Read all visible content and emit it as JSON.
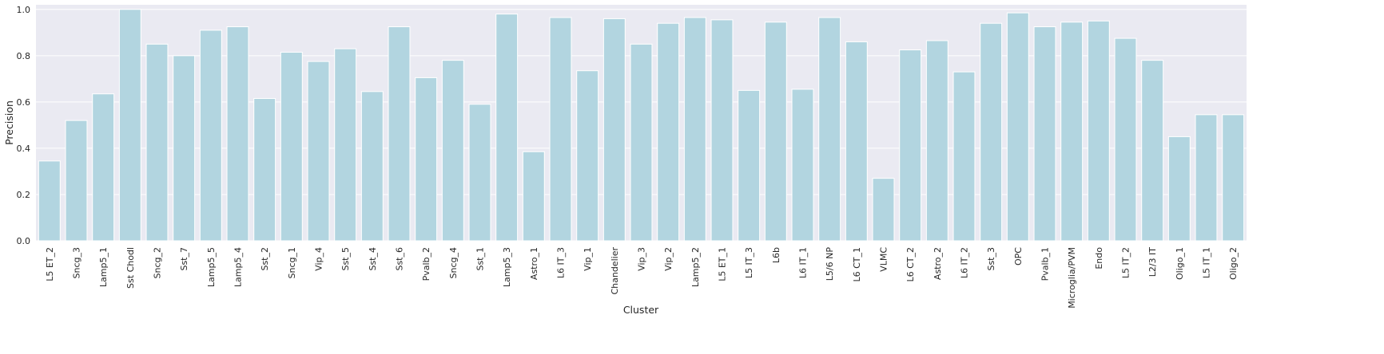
{
  "chart_data": {
    "type": "bar",
    "title": "",
    "xlabel": "Cluster",
    "ylabel": "Precision",
    "ylim": [
      0,
      1.02
    ],
    "yticks": [
      "0.0",
      "0.2",
      "0.4",
      "0.6",
      "0.8",
      "1.0"
    ],
    "grid": true,
    "legend": "none",
    "colors": {
      "bar": "#b2d5e0",
      "plot_bg": "#eaeaf2",
      "grid": "#ffffff"
    },
    "categories": [
      "L5 ET_2",
      "Sncg_3",
      "Lamp5_1",
      "Sst Chodl",
      "Sncg_2",
      "Sst_7",
      "Lamp5_5",
      "Lamp5_4",
      "Sst_2",
      "Sncg_1",
      "Vip_4",
      "Sst_5",
      "Sst_4",
      "Sst_6",
      "Pvalb_2",
      "Sncg_4",
      "Sst_1",
      "Lamp5_3",
      "Astro_1",
      "L6 IT_3",
      "Vip_1",
      "Chandelier",
      "Vip_3",
      "Vip_2",
      "Lamp5_2",
      "L5 ET_1",
      "L5 IT_3",
      "L6b",
      "L6 IT_1",
      "L5/6 NP",
      "L6 CT_1",
      "VLMC",
      "L6 CT_2",
      "Astro_2",
      "L6 IT_2",
      "Sst_3",
      "OPC",
      "Pvalb_1",
      "Microglia/PVM",
      "Endo",
      "L5 IT_2",
      "L2/3 IT",
      "Oligo_1",
      "L5 IT_1",
      "Oligo_2"
    ],
    "values": [
      0.345,
      0.52,
      0.635,
      1.0,
      0.85,
      0.8,
      0.91,
      0.925,
      0.615,
      0.815,
      0.775,
      0.83,
      0.645,
      0.925,
      0.705,
      0.78,
      0.59,
      0.98,
      0.385,
      0.965,
      0.735,
      0.96,
      0.85,
      0.94,
      0.965,
      0.955,
      0.65,
      0.945,
      0.655,
      0.965,
      0.86,
      0.27,
      0.825,
      0.865,
      0.73,
      0.94,
      0.985,
      0.925,
      0.945,
      0.95,
      0.875,
      0.78,
      0.45,
      0.545,
      0.545
    ]
  }
}
